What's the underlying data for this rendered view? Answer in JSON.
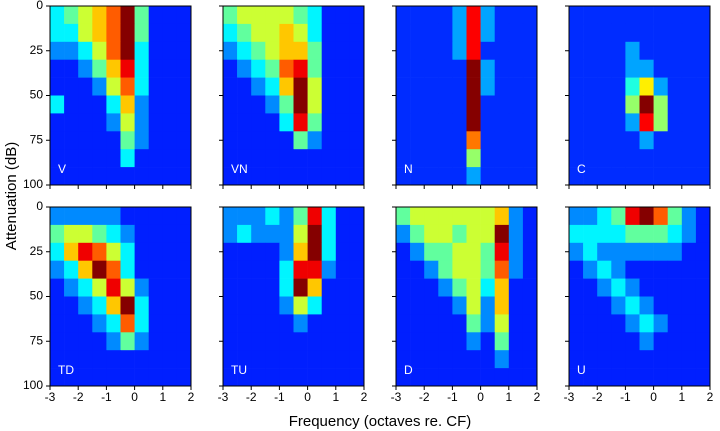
{
  "axis_labels": {
    "y": "Attenuation (dB)",
    "x": "Frequency (octaves re. CF)"
  },
  "chart_data": [
    {
      "type": "heatmap",
      "label": "V",
      "xlim": [
        -3,
        2
      ],
      "ylim": [
        0,
        100
      ],
      "y_inverted": true,
      "xticks": [
        -3,
        -2,
        -1,
        0,
        1,
        2
      ],
      "yticks": [
        0,
        25,
        50,
        75,
        100
      ],
      "x_bins": [
        -3,
        -2.5,
        -2,
        -1.5,
        -1,
        -0.5,
        0,
        0.5,
        1,
        1.5,
        2
      ],
      "y_bins": [
        0,
        10,
        20,
        30,
        40,
        50,
        60,
        70,
        80,
        90,
        100
      ],
      "z": [
        [
          3,
          4,
          5,
          6,
          7,
          9,
          4,
          1,
          1,
          1
        ],
        [
          3,
          3,
          5,
          6,
          7,
          9,
          4,
          1,
          1,
          1
        ],
        [
          2,
          2,
          3,
          5,
          7,
          9,
          3,
          1,
          1,
          1
        ],
        [
          1,
          1,
          2,
          4,
          6,
          8,
          3,
          1,
          1,
          1
        ],
        [
          1,
          1,
          1,
          2,
          5,
          7,
          3,
          1,
          1,
          1
        ],
        [
          3,
          1,
          1,
          1,
          3,
          6,
          2,
          1,
          1,
          1
        ],
        [
          1,
          1,
          1,
          1,
          2,
          5,
          2,
          1,
          1,
          1
        ],
        [
          1,
          1,
          1,
          1,
          1,
          4,
          2,
          1,
          1,
          1
        ],
        [
          1,
          1,
          1,
          1,
          1,
          3,
          1,
          1,
          1,
          1
        ],
        [
          1,
          1,
          1,
          1,
          1,
          1,
          1,
          1,
          1,
          1
        ]
      ]
    },
    {
      "type": "heatmap",
      "label": "VN",
      "xlim": [
        -3,
        2
      ],
      "ylim": [
        0,
        100
      ],
      "y_inverted": true,
      "xticks": [
        -3,
        -2,
        -1,
        0,
        1,
        2
      ],
      "yticks": [
        0,
        25,
        50,
        75,
        100
      ],
      "x_bins": [
        -3,
        -2.5,
        -2,
        -1.5,
        -1,
        -0.5,
        0,
        0.5,
        1,
        1.5,
        2
      ],
      "y_bins": [
        0,
        10,
        20,
        30,
        40,
        50,
        60,
        70,
        80,
        90,
        100
      ],
      "z": [
        [
          4,
          5,
          5,
          5,
          5,
          4,
          3,
          1,
          1,
          1
        ],
        [
          3,
          4,
          5,
          5,
          6,
          5,
          3,
          1,
          1,
          1
        ],
        [
          2,
          3,
          4,
          5,
          6,
          6,
          4,
          1,
          1,
          1
        ],
        [
          1,
          2,
          3,
          4,
          7,
          8,
          4,
          1,
          1,
          1
        ],
        [
          1,
          1,
          2,
          3,
          6,
          9,
          5,
          1,
          1,
          1
        ],
        [
          1,
          1,
          1,
          2,
          4,
          9,
          5,
          1,
          1,
          1
        ],
        [
          1,
          1,
          1,
          1,
          3,
          8,
          4,
          1,
          1,
          1
        ],
        [
          1,
          1,
          1,
          1,
          1,
          4,
          2,
          1,
          1,
          1
        ],
        [
          1,
          1,
          1,
          1,
          1,
          1,
          1,
          1,
          1,
          1
        ],
        [
          1,
          1,
          1,
          1,
          1,
          1,
          1,
          1,
          1,
          1
        ]
      ]
    },
    {
      "type": "heatmap",
      "label": "N",
      "xlim": [
        -3,
        2
      ],
      "ylim": [
        0,
        100
      ],
      "y_inverted": true,
      "xticks": [
        -3,
        -2,
        -1,
        0,
        1,
        2
      ],
      "yticks": [
        0,
        25,
        50,
        75,
        100
      ],
      "x_bins": [
        -3,
        -2.5,
        -2,
        -1.5,
        -1,
        -0.5,
        0,
        0.5,
        1,
        1.5,
        2
      ],
      "y_bins": [
        0,
        10,
        20,
        30,
        40,
        50,
        60,
        70,
        80,
        90,
        100
      ],
      "z": [
        [
          1,
          1,
          1,
          1,
          2,
          7,
          2,
          1,
          1,
          1
        ],
        [
          1,
          1,
          1,
          1,
          2,
          7,
          2,
          1,
          1,
          1
        ],
        [
          1,
          1,
          1,
          1,
          2,
          7,
          1,
          1,
          1,
          1
        ],
        [
          1,
          1,
          1,
          1,
          1,
          8,
          2,
          1,
          1,
          1
        ],
        [
          1,
          1,
          1,
          1,
          1,
          8,
          2,
          1,
          1,
          1
        ],
        [
          1,
          1,
          1,
          1,
          1,
          8,
          1,
          1,
          1,
          1
        ],
        [
          1,
          1,
          1,
          1,
          1,
          8,
          1,
          1,
          1,
          1
        ],
        [
          1,
          1,
          1,
          1,
          1,
          6,
          1,
          1,
          1,
          1
        ],
        [
          1,
          1,
          1,
          1,
          1,
          4,
          1,
          1,
          1,
          1
        ],
        [
          1,
          1,
          1,
          1,
          1,
          2,
          1,
          1,
          1,
          1
        ]
      ]
    },
    {
      "type": "heatmap",
      "label": "C",
      "xlim": [
        -3,
        2
      ],
      "ylim": [
        0,
        100
      ],
      "y_inverted": true,
      "xticks": [
        -3,
        -2,
        -1,
        0,
        1,
        2
      ],
      "yticks": [
        0,
        25,
        50,
        75,
        100
      ],
      "x_bins": [
        -3,
        -2.5,
        -2,
        -1.5,
        -1,
        -0.5,
        0,
        0.5,
        1,
        1.5,
        2
      ],
      "y_bins": [
        0,
        10,
        20,
        30,
        40,
        50,
        60,
        70,
        80,
        90,
        100
      ],
      "z": [
        [
          1,
          1,
          1,
          1,
          1,
          1,
          1,
          1,
          1,
          1
        ],
        [
          1,
          1,
          1,
          1,
          1,
          1,
          1,
          1,
          1,
          1
        ],
        [
          1,
          1,
          1,
          1,
          2,
          1,
          1,
          1,
          1,
          1
        ],
        [
          1,
          1,
          1,
          1,
          2,
          2,
          1,
          1,
          1,
          1
        ],
        [
          1,
          1,
          1,
          1,
          3,
          5,
          2,
          1,
          1,
          1
        ],
        [
          1,
          1,
          1,
          1,
          4,
          8,
          4,
          1,
          1,
          1
        ],
        [
          1,
          1,
          1,
          1,
          2,
          7,
          4,
          1,
          1,
          1
        ],
        [
          1,
          1,
          1,
          1,
          1,
          2,
          1,
          1,
          1,
          1
        ],
        [
          1,
          1,
          1,
          1,
          1,
          1,
          1,
          1,
          1,
          1
        ],
        [
          1,
          1,
          1,
          1,
          1,
          1,
          1,
          1,
          1,
          1
        ]
      ]
    },
    {
      "type": "heatmap",
      "label": "TD",
      "xlim": [
        -3,
        2
      ],
      "ylim": [
        0,
        100
      ],
      "y_inverted": true,
      "xticks": [
        -3,
        -2,
        -1,
        0,
        1,
        2
      ],
      "yticks": [
        0,
        25,
        50,
        75,
        100
      ],
      "x_bins": [
        -3,
        -2.5,
        -2,
        -1.5,
        -1,
        -0.5,
        0,
        0.5,
        1,
        1.5,
        2
      ],
      "y_bins": [
        0,
        10,
        20,
        30,
        40,
        50,
        60,
        70,
        80,
        90,
        100
      ],
      "z": [
        [
          2,
          2,
          2,
          2,
          2,
          1,
          1,
          1,
          1,
          1
        ],
        [
          4,
          5,
          5,
          4,
          3,
          2,
          1,
          1,
          1,
          1
        ],
        [
          3,
          6,
          8,
          7,
          5,
          3,
          1,
          1,
          1,
          1
        ],
        [
          2,
          3,
          6,
          9,
          7,
          3,
          1,
          1,
          1,
          1
        ],
        [
          1,
          2,
          3,
          5,
          8,
          5,
          2,
          1,
          1,
          1
        ],
        [
          1,
          1,
          2,
          3,
          6,
          9,
          3,
          1,
          1,
          1
        ],
        [
          1,
          1,
          1,
          2,
          3,
          7,
          3,
          1,
          1,
          1
        ],
        [
          1,
          1,
          1,
          1,
          2,
          4,
          2,
          1,
          1,
          1
        ],
        [
          1,
          1,
          1,
          1,
          1,
          1,
          1,
          1,
          1,
          1
        ],
        [
          1,
          1,
          1,
          1,
          1,
          1,
          1,
          1,
          1,
          1
        ]
      ]
    },
    {
      "type": "heatmap",
      "label": "TU",
      "xlim": [
        -3,
        2
      ],
      "ylim": [
        0,
        100
      ],
      "y_inverted": true,
      "xticks": [
        -3,
        -2,
        -1,
        0,
        1,
        2
      ],
      "yticks": [
        0,
        25,
        50,
        75,
        100
      ],
      "x_bins": [
        -3,
        -2.5,
        -2,
        -1.5,
        -1,
        -0.5,
        0,
        0.5,
        1,
        1.5,
        2
      ],
      "y_bins": [
        0,
        10,
        20,
        30,
        40,
        50,
        60,
        70,
        80,
        90,
        100
      ],
      "z": [
        [
          2,
          2,
          2,
          3,
          2,
          4,
          8,
          3,
          1,
          1
        ],
        [
          2,
          3,
          2,
          2,
          2,
          5,
          9,
          3,
          1,
          1
        ],
        [
          1,
          1,
          1,
          1,
          2,
          6,
          9,
          3,
          1,
          1
        ],
        [
          1,
          1,
          1,
          1,
          3,
          8,
          8,
          2,
          1,
          1
        ],
        [
          1,
          1,
          1,
          1,
          3,
          9,
          6,
          1,
          1,
          1
        ],
        [
          1,
          1,
          1,
          1,
          2,
          5,
          3,
          1,
          1,
          1
        ],
        [
          1,
          1,
          1,
          1,
          1,
          2,
          1,
          1,
          1,
          1
        ],
        [
          1,
          1,
          1,
          1,
          1,
          1,
          1,
          1,
          1,
          1
        ],
        [
          1,
          1,
          1,
          1,
          1,
          1,
          1,
          1,
          1,
          1
        ],
        [
          1,
          1,
          1,
          1,
          1,
          1,
          1,
          1,
          1,
          1
        ]
      ]
    },
    {
      "type": "heatmap",
      "label": "D",
      "xlim": [
        -3,
        2
      ],
      "ylim": [
        0,
        100
      ],
      "y_inverted": true,
      "xticks": [
        -3,
        -2,
        -1,
        0,
        1,
        2
      ],
      "yticks": [
        0,
        25,
        50,
        75,
        100
      ],
      "x_bins": [
        -3,
        -2.5,
        -2,
        -1.5,
        -1,
        -0.5,
        0,
        0.5,
        1,
        1.5,
        2
      ],
      "y_bins": [
        0,
        10,
        20,
        30,
        40,
        50,
        60,
        70,
        80,
        90,
        100
      ],
      "z": [
        [
          4,
          5,
          5,
          5,
          5,
          5,
          5,
          6,
          2,
          1
        ],
        [
          2,
          4,
          5,
          5,
          4,
          5,
          5,
          9,
          2,
          1
        ],
        [
          1,
          2,
          4,
          4,
          5,
          5,
          4,
          8,
          2,
          1
        ],
        [
          1,
          1,
          2,
          4,
          5,
          5,
          4,
          7,
          2,
          1
        ],
        [
          1,
          1,
          1,
          2,
          4,
          5,
          3,
          6,
          1,
          1
        ],
        [
          1,
          1,
          1,
          1,
          2,
          5,
          2,
          6,
          1,
          1
        ],
        [
          1,
          1,
          1,
          1,
          1,
          4,
          2,
          5,
          1,
          1
        ],
        [
          1,
          1,
          1,
          1,
          1,
          2,
          1,
          4,
          1,
          1
        ],
        [
          1,
          1,
          1,
          1,
          1,
          1,
          1,
          2,
          1,
          1
        ],
        [
          1,
          1,
          1,
          1,
          1,
          1,
          1,
          1,
          1,
          1
        ]
      ]
    },
    {
      "type": "heatmap",
      "label": "U",
      "xlim": [
        -3,
        2
      ],
      "ylim": [
        0,
        100
      ],
      "y_inverted": true,
      "xticks": [
        -3,
        -2,
        -1,
        0,
        1,
        2
      ],
      "yticks": [
        0,
        25,
        50,
        75,
        100
      ],
      "x_bins": [
        -3,
        -2.5,
        -2,
        -1.5,
        -1,
        -0.5,
        0,
        0.5,
        1,
        1.5,
        2
      ],
      "y_bins": [
        0,
        10,
        20,
        30,
        40,
        50,
        60,
        70,
        80,
        90,
        100
      ],
      "z": [
        [
          2,
          2,
          3,
          4,
          8,
          9,
          7,
          4,
          2,
          1
        ],
        [
          3,
          3,
          3,
          3,
          4,
          4,
          4,
          3,
          2,
          1
        ],
        [
          2,
          3,
          2,
          2,
          2,
          2,
          2,
          2,
          1,
          1
        ],
        [
          1,
          2,
          3,
          2,
          1,
          1,
          1,
          1,
          1,
          1
        ],
        [
          1,
          1,
          2,
          3,
          2,
          1,
          1,
          1,
          1,
          1
        ],
        [
          1,
          1,
          1,
          2,
          3,
          2,
          1,
          1,
          1,
          1
        ],
        [
          1,
          1,
          1,
          1,
          2,
          3,
          2,
          1,
          1,
          1
        ],
        [
          1,
          1,
          1,
          1,
          1,
          2,
          1,
          1,
          1,
          1
        ],
        [
          1,
          1,
          1,
          1,
          1,
          1,
          1,
          1,
          1,
          1
        ],
        [
          1,
          1,
          1,
          1,
          1,
          1,
          1,
          1,
          1,
          1
        ]
      ]
    }
  ]
}
